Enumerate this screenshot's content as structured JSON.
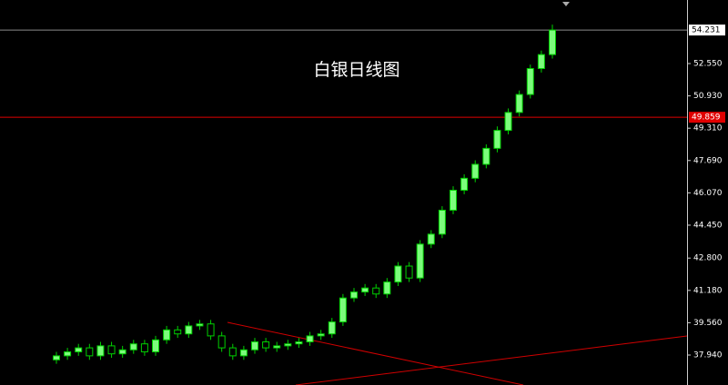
{
  "chart_data": {
    "type": "candlestick",
    "title": "白银日线图",
    "open": [
      37.7,
      37.9,
      38.1,
      38.3,
      37.9,
      38.4,
      38.0,
      38.2,
      38.5,
      38.1,
      38.7,
      39.2,
      39.0,
      39.4,
      39.5,
      38.9,
      38.3,
      37.9,
      38.2,
      38.6,
      38.3,
      38.4,
      38.5,
      38.6,
      38.9,
      39.0,
      39.6,
      40.8,
      41.1,
      41.3,
      41.0,
      41.6,
      42.4,
      41.8,
      43.5,
      44.0,
      45.2,
      46.2,
      46.8,
      47.5,
      48.3,
      49.2,
      50.1,
      51.0,
      52.3,
      53.0
    ],
    "high": [
      38.1,
      38.3,
      38.5,
      38.5,
      38.6,
      38.6,
      38.4,
      38.7,
      38.7,
      38.9,
      39.4,
      39.4,
      39.6,
      39.7,
      39.7,
      39.1,
      38.5,
      38.4,
      38.8,
      38.8,
      38.6,
      38.7,
      38.8,
      39.1,
      39.2,
      39.8,
      41.0,
      41.3,
      41.5,
      41.5,
      41.8,
      42.6,
      42.6,
      43.7,
      44.2,
      45.4,
      46.4,
      47.0,
      47.7,
      48.5,
      49.4,
      50.3,
      51.2,
      52.5,
      53.2,
      54.5
    ],
    "low": [
      37.5,
      37.7,
      37.9,
      37.7,
      37.7,
      37.8,
      37.8,
      38.0,
      37.9,
      37.9,
      38.5,
      38.8,
      38.8,
      39.2,
      38.7,
      38.1,
      37.7,
      37.7,
      38.0,
      38.1,
      38.1,
      38.2,
      38.3,
      38.4,
      38.7,
      38.8,
      39.4,
      40.6,
      40.9,
      40.8,
      40.8,
      41.4,
      41.6,
      41.6,
      43.3,
      43.8,
      45.0,
      46.0,
      46.6,
      47.3,
      48.1,
      49.0,
      49.9,
      50.8,
      52.1,
      52.8
    ],
    "close": [
      37.9,
      38.1,
      38.3,
      37.9,
      38.4,
      38.0,
      38.2,
      38.5,
      38.1,
      38.7,
      39.2,
      39.0,
      39.4,
      39.5,
      38.9,
      38.3,
      37.9,
      38.2,
      38.6,
      38.3,
      38.4,
      38.5,
      38.6,
      38.9,
      39.0,
      39.6,
      40.8,
      41.1,
      41.3,
      41.0,
      41.6,
      42.4,
      41.8,
      43.5,
      44.0,
      45.2,
      46.2,
      46.8,
      47.5,
      48.3,
      49.2,
      50.1,
      51.0,
      52.3,
      53.0,
      54.231
    ],
    "up_color": "#7CFC7C",
    "down_color": "#000000",
    "wick_color": "#00d000",
    "ylim": [
      36.438,
      55.736
    ],
    "yticks": [
      {
        "value": 52.55,
        "label": "52.550"
      },
      {
        "value": 50.93,
        "label": "50.930"
      },
      {
        "value": 49.31,
        "label": "49.310"
      },
      {
        "value": 47.69,
        "label": "47.690"
      },
      {
        "value": 46.07,
        "label": "46.070"
      },
      {
        "value": 44.45,
        "label": "44.450"
      },
      {
        "value": 42.8,
        "label": "42.800"
      },
      {
        "value": 41.18,
        "label": "41.180"
      },
      {
        "value": 39.56,
        "label": "39.560"
      },
      {
        "value": 37.94,
        "label": "37.940"
      }
    ],
    "current_price": 54.231,
    "level_line": 49.859
  }
}
